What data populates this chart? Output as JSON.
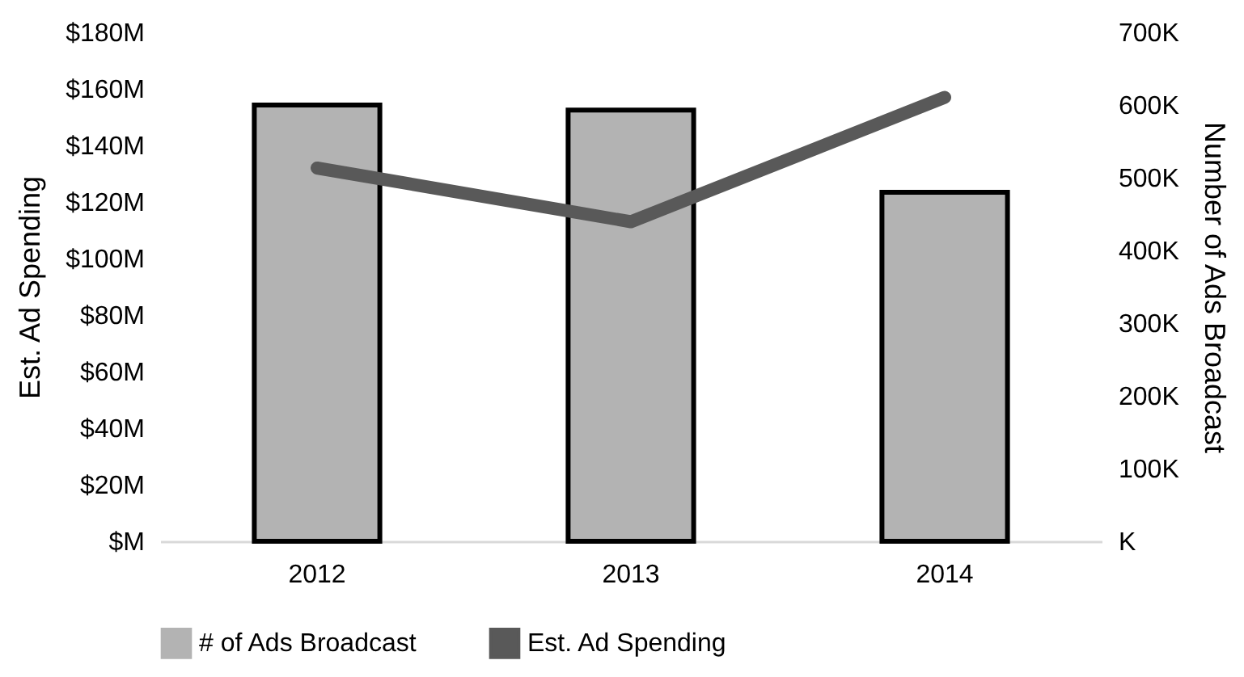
{
  "chart_data": {
    "type": "bar",
    "xlabel": null,
    "ylabel": "Est. Ad Spending",
    "y2label": "Number of Ads Broadcast",
    "categories": [
      "2012",
      "2013",
      "2014"
    ],
    "series": [
      {
        "name": "# of Ads Broadcast",
        "axis": "y2",
        "color": "#b3b3b3",
        "values": [
          600,
          593,
          480
        ]
      },
      {
        "name": "Est. Ad Spending",
        "type": "line",
        "color": "#595959",
        "values": [
          132,
          113,
          157
        ]
      }
    ],
    "ylim": [
      0,
      180
    ],
    "yticks": [
      {
        "value": 0,
        "label": "$M"
      },
      {
        "value": 20,
        "label": "$20M"
      },
      {
        "value": 40,
        "label": "$40M"
      },
      {
        "value": 60,
        "label": "$60M"
      },
      {
        "value": 80,
        "label": "$80M"
      },
      {
        "value": 100,
        "label": "$100M"
      },
      {
        "value": 120,
        "label": "$120M"
      },
      {
        "value": 140,
        "label": "$140M"
      },
      {
        "value": 160,
        "label": "$160M"
      },
      {
        "value": 180,
        "label": "$180M"
      }
    ],
    "y2lim": [
      0,
      700
    ],
    "y2ticks": [
      {
        "value": 0,
        "label": "K"
      },
      {
        "value": 100,
        "label": "100K"
      },
      {
        "value": 200,
        "label": "200K"
      },
      {
        "value": 300,
        "label": "300K"
      },
      {
        "value": 400,
        "label": "400K"
      },
      {
        "value": 500,
        "label": "500K"
      },
      {
        "value": 600,
        "label": "600K"
      },
      {
        "value": 700,
        "label": "700K"
      }
    ],
    "grid": false,
    "legend": "bottom",
    "marker": "none",
    "line_style": "solid"
  }
}
